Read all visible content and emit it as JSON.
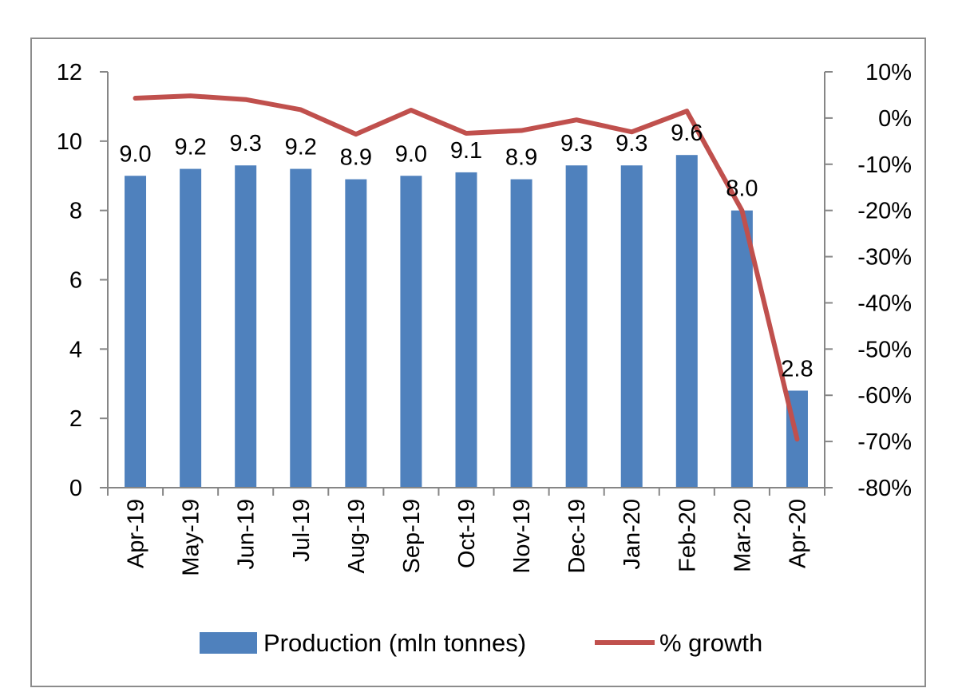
{
  "chart_data": {
    "type": "bar+line",
    "title": "",
    "categories": [
      "Apr-19",
      "May-19",
      "Jun-19",
      "Jul-19",
      "Aug-19",
      "Sep-19",
      "Oct-19",
      "Nov-19",
      "Dec-19",
      "Jan-20",
      "Feb-20",
      "Mar-20",
      "Apr-20"
    ],
    "series": [
      {
        "name": "Production (mln tonnes)",
        "kind": "bar",
        "axis": "left",
        "color": "#4f81bd",
        "values": [
          9.0,
          9.2,
          9.3,
          9.2,
          8.9,
          9.0,
          9.1,
          8.9,
          9.3,
          9.3,
          9.6,
          8.0,
          2.8
        ],
        "value_labels": [
          "9.0",
          "9.2",
          "9.3",
          "9.2",
          "8.9",
          "9.0",
          "9.1",
          "8.9",
          "9.3",
          "9.3",
          "9.6",
          "8.0",
          "2.8"
        ]
      },
      {
        "name": "% growth",
        "kind": "line",
        "axis": "right",
        "color": "#c0504d",
        "values": [
          4.3,
          4.8,
          4.0,
          1.8,
          -3.5,
          1.7,
          -3.3,
          -2.7,
          -0.4,
          -3.0,
          1.5,
          -20.0,
          -69.5
        ]
      }
    ],
    "y_left": {
      "min": 0,
      "max": 12,
      "ticks": [
        0,
        2,
        4,
        6,
        8,
        10,
        12
      ],
      "tick_labels": [
        "0",
        "2",
        "4",
        "6",
        "8",
        "10",
        "12"
      ]
    },
    "y_right": {
      "min": -80,
      "max": 10,
      "ticks": [
        10,
        0,
        -10,
        -20,
        -30,
        -40,
        -50,
        -60,
        -70,
        -80
      ],
      "tick_labels": [
        "10%",
        "0%",
        "-10%",
        "-20%",
        "-30%",
        "-40%",
        "-50%",
        "-60%",
        "-70%",
        "-80%"
      ]
    },
    "grid": false,
    "legend_position": "bottom"
  }
}
